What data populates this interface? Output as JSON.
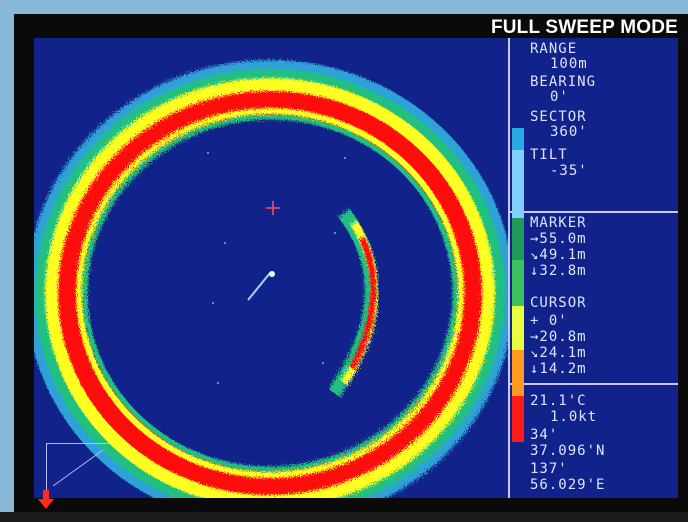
{
  "header": {
    "mode": "FULL SWEEP MODE"
  },
  "panel": {
    "range_label": "RANGE",
    "range_value": "100m",
    "bearing_label": "BEARING",
    "bearing_value": "0'",
    "sector_label": "SECTOR",
    "sector_value": "360'",
    "tilt_label": "TILT",
    "tilt_value": "-35'",
    "marker_label": "MARKER",
    "marker_values": [
      "→55.0m",
      "↘49.1m",
      "↓32.8m"
    ],
    "cursor_label": "CURSOR",
    "cursor_values": [
      "+ 0'",
      "→20.8m",
      "↘24.1m",
      "↓14.2m"
    ],
    "info_values": [
      "21.1'C",
      "1.0kt",
      "34'",
      "37.096'N",
      "137'",
      "56.029'E"
    ]
  },
  "colors": {
    "screen": "#11228a",
    "strong": "#ff1010",
    "medium": "#ffff20",
    "weak": "#20c080",
    "faint": "#30b0e0",
    "scale": [
      "#2aa8e0",
      "#7fd0ff",
      "#1f9a58",
      "#3cc060",
      "#e8ff40",
      "#ff9a20",
      "#ff1b1b"
    ]
  },
  "icons": {
    "north": "arrow-down-icon",
    "target": "crosshair-icon"
  }
}
